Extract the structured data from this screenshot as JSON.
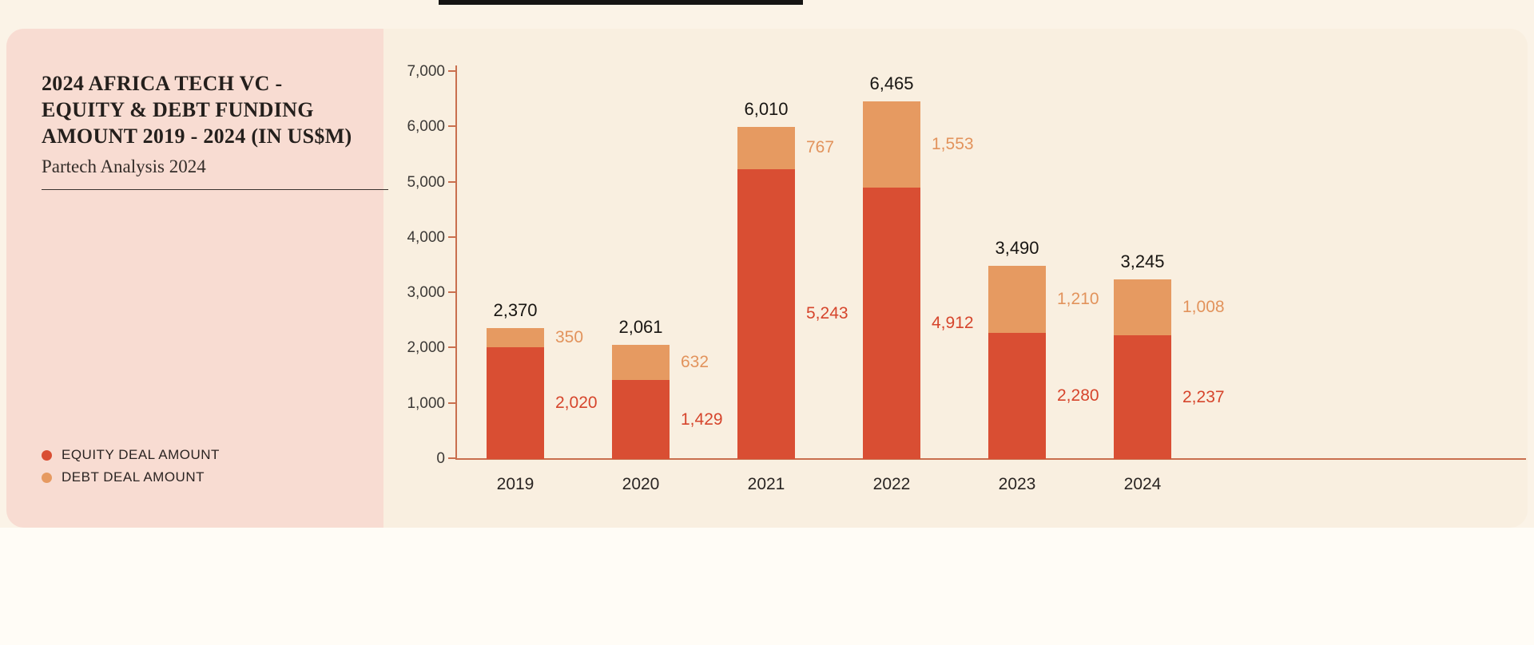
{
  "panel": {
    "title_lines": [
      "2024 AFRICA TECH VC -",
      "EQUITY & DEBT FUNDING",
      "AMOUNT 2019 - 2024 (IN US$M)"
    ],
    "subtitle": "Partech Analysis 2024",
    "legend": [
      {
        "label": "EQUITY DEAL AMOUNT",
        "color": "#d94e33"
      },
      {
        "label": "DEBT DEAL AMOUNT",
        "color": "#e69a61"
      }
    ]
  },
  "chart_data": {
    "type": "bar",
    "stacked": true,
    "title": "2024 AFRICA TECH VC - EQUITY & DEBT FUNDING AMOUNT 2019 - 2024 (IN US$M)",
    "subtitle": "Partech Analysis 2024",
    "categories": [
      "2019",
      "2020",
      "2021",
      "2022",
      "2023",
      "2024"
    ],
    "series": [
      {
        "name": "EQUITY DEAL AMOUNT",
        "color": "#d94e33",
        "label_color": "#d6452c",
        "values": [
          2020,
          1429,
          5243,
          4912,
          2280,
          2237
        ]
      },
      {
        "name": "DEBT DEAL AMOUNT",
        "color": "#e69a61",
        "label_color": "#e2935c",
        "values": [
          350,
          632,
          767,
          1553,
          1210,
          1008
        ]
      }
    ],
    "totals": [
      2370,
      2061,
      6010,
      6465,
      3490,
      3245
    ],
    "yticks": [
      "0",
      "1,000",
      "2,000",
      "3,000",
      "4,000",
      "5,000",
      "6,000",
      "7,000"
    ],
    "ylim": [
      0,
      7000
    ],
    "xlabel": "",
    "ylabel": "",
    "grid": false,
    "legend_position": "bottom-left"
  }
}
